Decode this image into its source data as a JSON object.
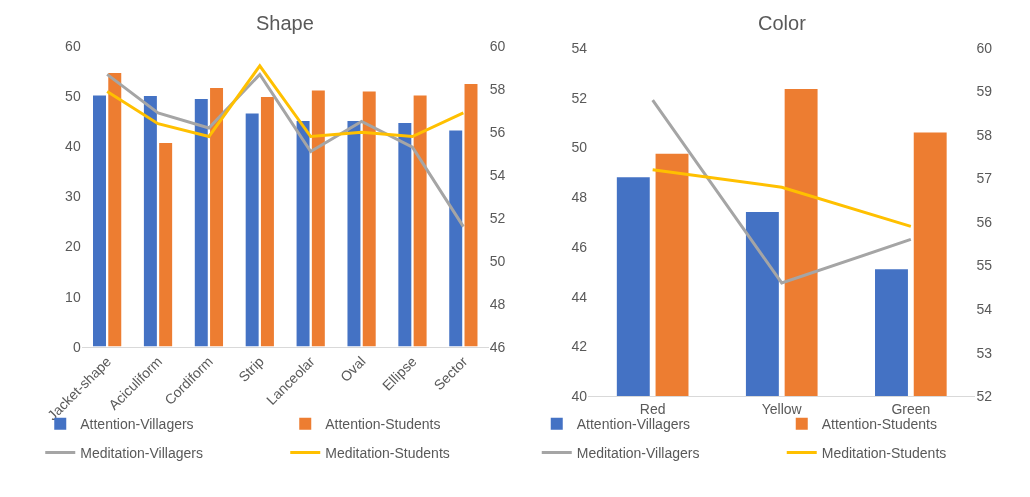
{
  "chart_data": [
    {
      "type": "bar",
      "title": "Shape",
      "categories": [
        "Jacket-shape",
        "Aciculiform",
        "Cordiform",
        "Strip",
        "Lanceolar",
        "Oval",
        "Ellipse",
        "Sector"
      ],
      "series": [
        {
          "name": "Attention-Villagers",
          "color": "#4472c4",
          "values": [
            50.2,
            50.1,
            49.5,
            46.6,
            45.1,
            45.1,
            44.7,
            43.2
          ]
        },
        {
          "name": "Attention-Students",
          "color": "#ed7d31",
          "values": [
            54.7,
            40.7,
            51.7,
            49.9,
            51.2,
            51.0,
            50.2,
            52.5
          ]
        },
        {
          "name": "Meditation-Villagers",
          "color": "#a5a5a5",
          "type": "line",
          "axis": "y2",
          "values": [
            58.7,
            56.9,
            56.2,
            58.7,
            55.1,
            56.5,
            55.3,
            51.6
          ]
        },
        {
          "name": "Meditation-Students",
          "color": "#ffc000",
          "type": "line",
          "axis": "y2",
          "values": [
            57.9,
            56.4,
            55.8,
            59.1,
            55.8,
            56.0,
            55.8,
            56.9
          ]
        }
      ],
      "ylim": [
        0,
        60
      ],
      "yticks": [
        0,
        10,
        20,
        30,
        40,
        50,
        60
      ],
      "y2lim": [
        46,
        60
      ],
      "y2ticks": [
        46,
        48,
        50,
        52,
        54,
        56,
        58,
        60
      ],
      "legend": "bottom",
      "marker": "none"
    },
    {
      "type": "bar",
      "title": "Color",
      "categories": [
        "Red",
        "Yellow",
        "Green"
      ],
      "series": [
        {
          "name": "Attention-Villagers",
          "color": "#4472c4",
          "values": [
            48.8,
            47.4,
            45.1
          ]
        },
        {
          "name": "Attention-Students",
          "color": "#ed7d31",
          "values": [
            49.75,
            52.35,
            50.6
          ]
        },
        {
          "name": "Meditation-Villagers",
          "color": "#a5a5a5",
          "type": "line",
          "axis": "y2",
          "values": [
            58.8,
            54.6,
            55.6
          ]
        },
        {
          "name": "Meditation-Students",
          "color": "#ffc000",
          "type": "line",
          "axis": "y2",
          "values": [
            57.2,
            56.8,
            55.9
          ]
        }
      ],
      "ylim": [
        40,
        54
      ],
      "yticks": [
        40,
        42,
        44,
        46,
        48,
        50,
        52,
        54
      ],
      "y2lim": [
        52,
        60
      ],
      "y2ticks": [
        52,
        53,
        54,
        55,
        56,
        57,
        58,
        59,
        60
      ],
      "legend": "bottom",
      "marker": "none"
    }
  ]
}
